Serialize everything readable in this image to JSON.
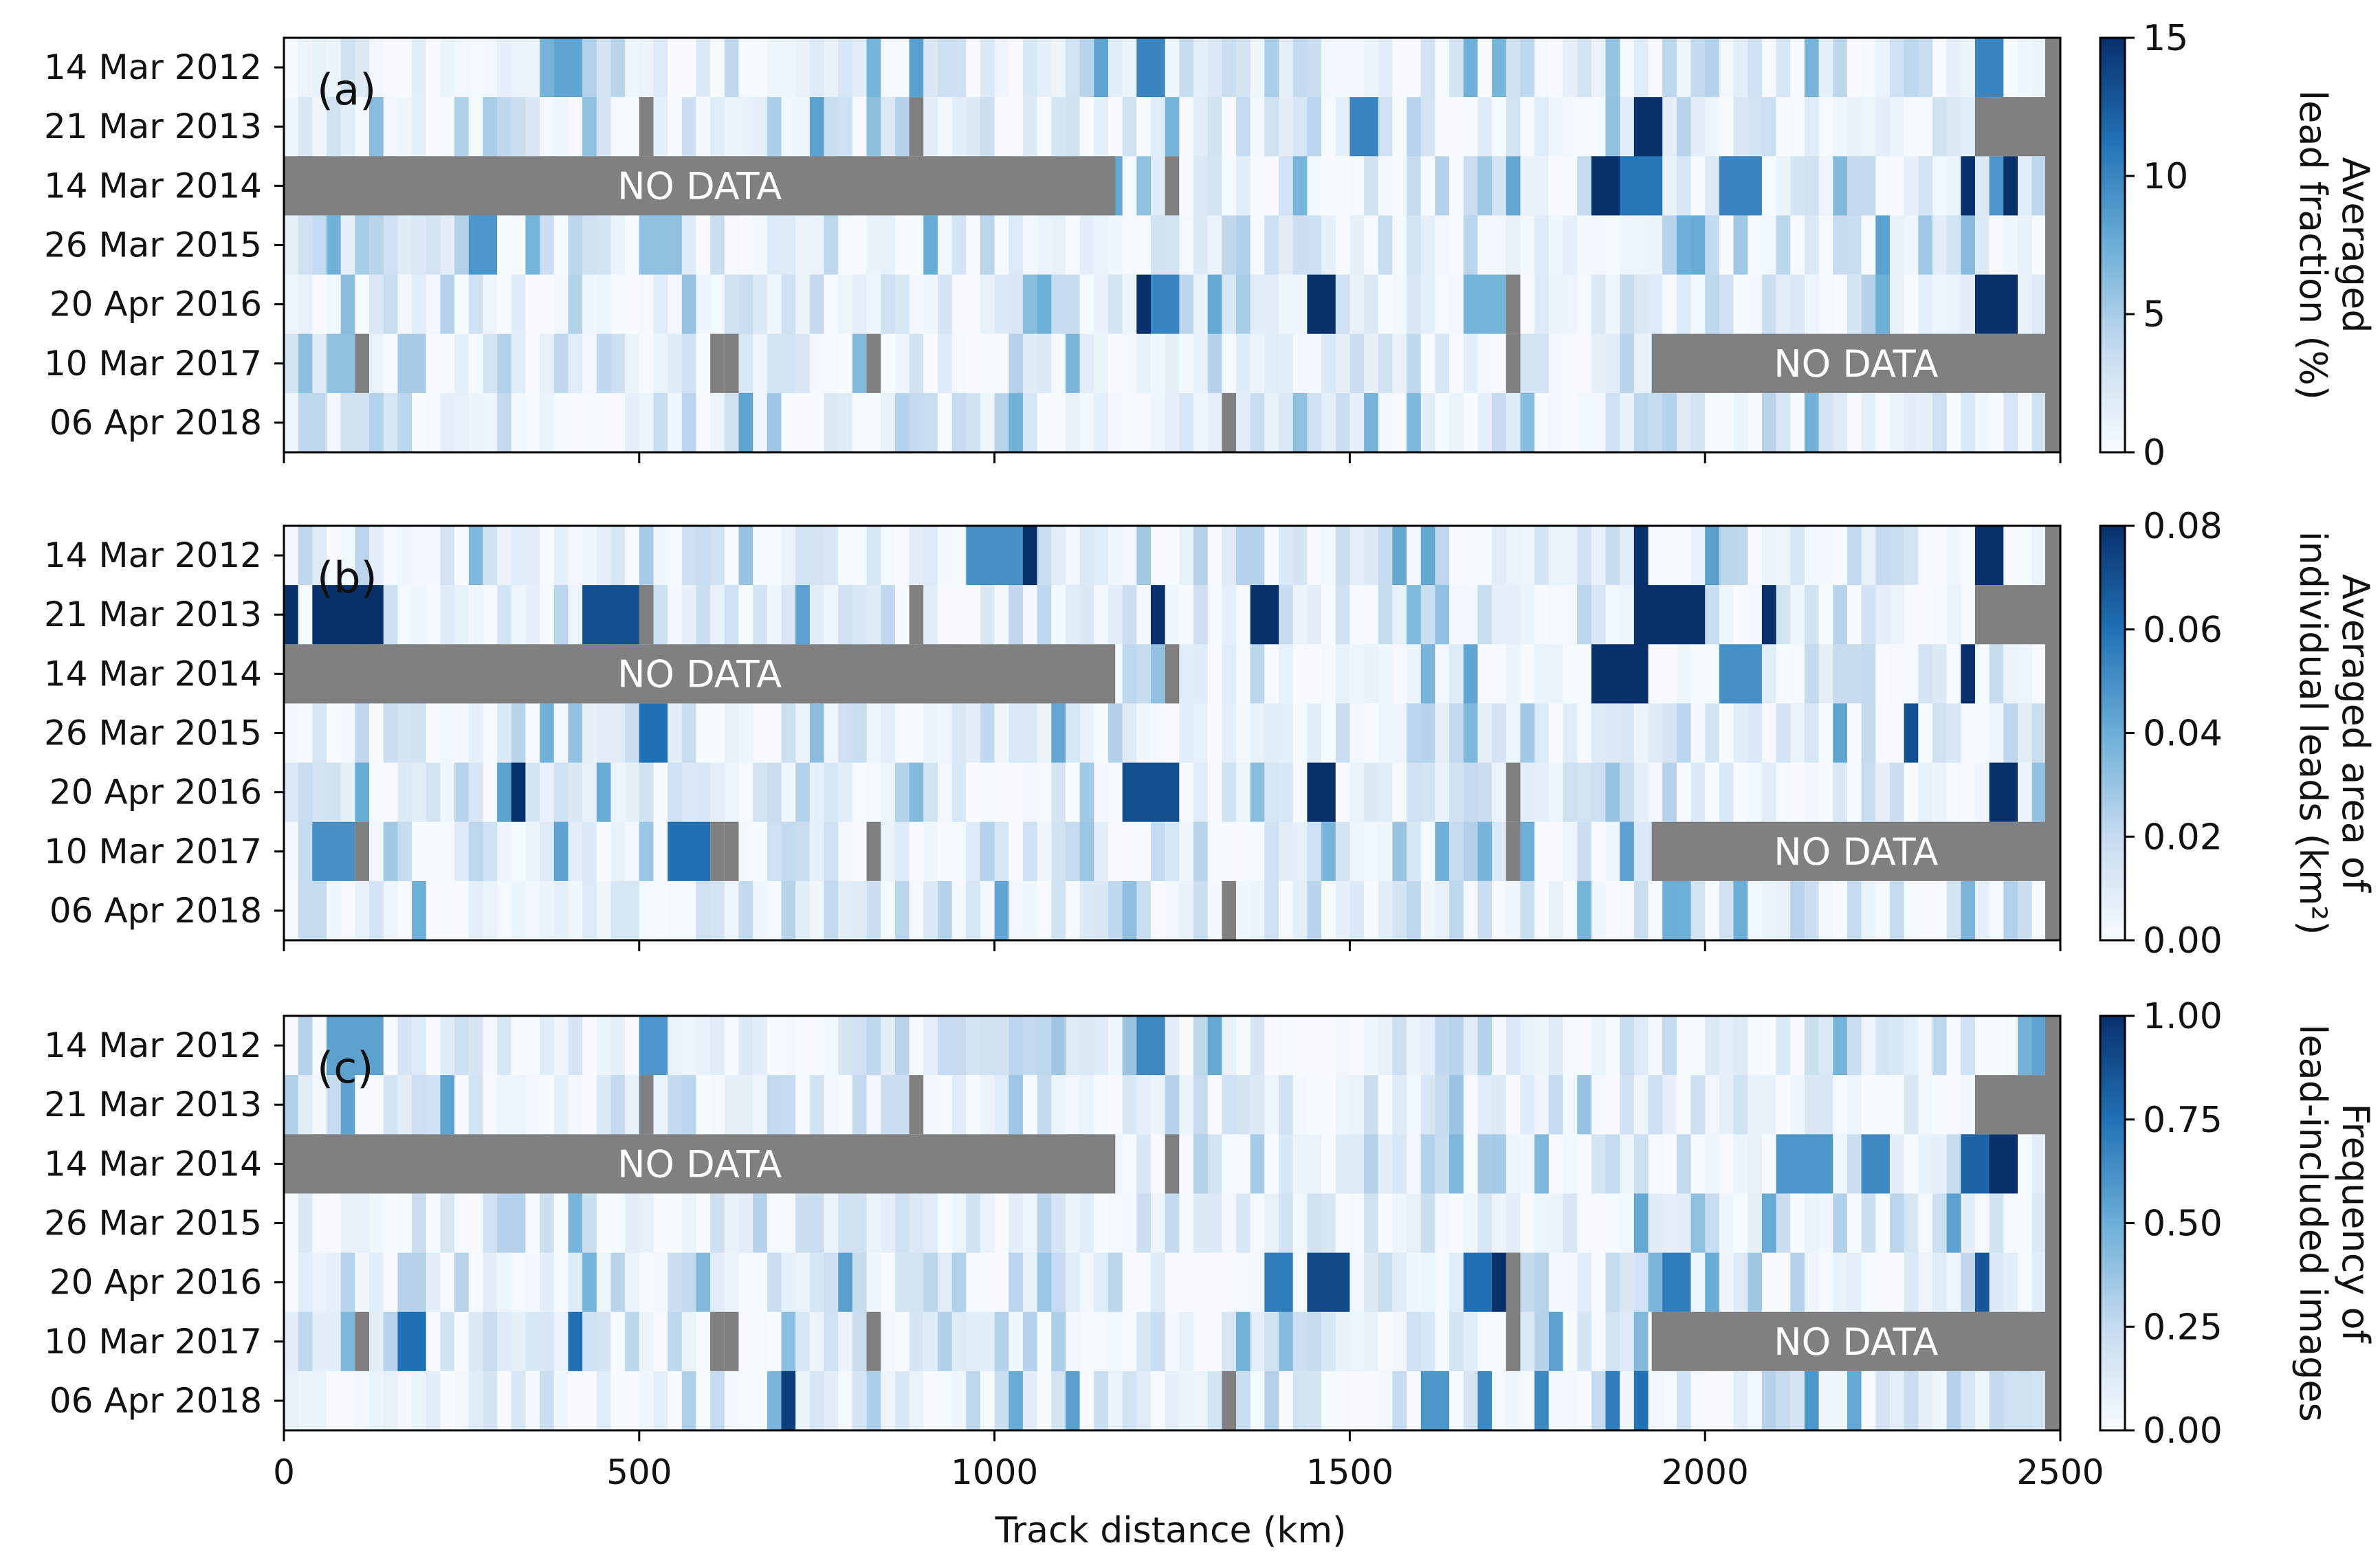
{
  "chart_data": {
    "type": "heatmap",
    "rows": [
      "14 Mar 2012",
      "21 Mar 2013",
      "14 Mar 2014",
      "26 Mar 2015",
      "20 Apr 2016",
      "10 Mar 2017",
      "06 Apr 2018"
    ],
    "bin_width_km": 20,
    "xlim": [
      0,
      2500
    ],
    "xticks": [
      "0",
      "500",
      "1000",
      "1500",
      "2000",
      "2500"
    ],
    "xlabel": "Track distance (km)",
    "no_data_label": "NO DATA",
    "colormap": [
      "#f7fbff",
      "#c6dbef",
      "#6baed6",
      "#2171b5",
      "#08306b"
    ],
    "nodata_color": "#808080",
    "panels": [
      {
        "label": "(a)",
        "colorbar_label": [
          "Averaged",
          "lead fraction (%)"
        ],
        "vmin": 0,
        "vmax": 15,
        "cbar_ticks": [
          "0",
          "5",
          "10",
          "15"
        ],
        "missing": [
          {
            "row": 1,
            "from_km": 2380,
            "to_km": 2500
          },
          {
            "row": 2,
            "from_km": 0,
            "to_km": 1170,
            "labeled": true
          },
          {
            "row": 5,
            "from_km": 1925,
            "to_km": 2500,
            "labeled": true
          }
        ],
        "missing_bins": [
          [
            1,
            510
          ],
          [
            1,
            880
          ],
          [
            2,
            1250
          ],
          [
            4,
            1720
          ],
          [
            5,
            100
          ],
          [
            5,
            600
          ],
          [
            5,
            620
          ],
          [
            5,
            830
          ],
          [
            5,
            1720
          ],
          [
            6,
            1330
          ]
        ],
        "hotspots": [
          {
            "row": 0,
            "from_km": 390,
            "to_km": 410,
            "value": 8
          },
          {
            "row": 0,
            "from_km": 1200,
            "to_km": 1230,
            "value": 10
          },
          {
            "row": 0,
            "from_km": 2390,
            "to_km": 2420,
            "value": 10
          },
          {
            "row": 0,
            "from_km": 2140,
            "to_km": 2160,
            "value": 7
          },
          {
            "row": 1,
            "from_km": 1510,
            "to_km": 1530,
            "value": 10
          },
          {
            "row": 1,
            "from_km": 1900,
            "to_km": 1940,
            "value": 15
          },
          {
            "row": 1,
            "from_km": 1240,
            "to_km": 1260,
            "value": 7
          },
          {
            "row": 1,
            "from_km": 420,
            "to_km": 440,
            "value": 6
          },
          {
            "row": 2,
            "from_km": 1850,
            "to_km": 1890,
            "value": 15
          },
          {
            "row": 2,
            "from_km": 1890,
            "to_km": 1940,
            "value": 11
          },
          {
            "row": 2,
            "from_km": 2030,
            "to_km": 2070,
            "value": 10
          },
          {
            "row": 2,
            "from_km": 2360,
            "to_km": 2380,
            "value": 15
          },
          {
            "row": 2,
            "from_km": 2420,
            "to_km": 2440,
            "value": 15
          },
          {
            "row": 2,
            "from_km": 2400,
            "to_km": 2420,
            "value": 9
          },
          {
            "row": 3,
            "from_km": 270,
            "to_km": 290,
            "value": 9
          },
          {
            "row": 3,
            "from_km": 500,
            "to_km": 550,
            "value": 6
          },
          {
            "row": 4,
            "from_km": 1200,
            "to_km": 1230,
            "value": 15
          },
          {
            "row": 4,
            "from_km": 1230,
            "to_km": 1250,
            "value": 10
          },
          {
            "row": 4,
            "from_km": 1450,
            "to_km": 1470,
            "value": 15
          },
          {
            "row": 4,
            "from_km": 1660,
            "to_km": 1710,
            "value": 7
          },
          {
            "row": 4,
            "from_km": 2380,
            "to_km": 2430,
            "value": 15
          },
          {
            "row": 5,
            "from_km": 70,
            "to_km": 100,
            "value": 6
          },
          {
            "row": 5,
            "from_km": 170,
            "to_km": 190,
            "value": 5
          }
        ]
      },
      {
        "label": "(b)",
        "colorbar_label": [
          "Averaged area of",
          "individual leads (km²)"
        ],
        "vmin": 0,
        "vmax": 0.08,
        "cbar_ticks": [
          "0.00",
          "0.02",
          "0.04",
          "0.06",
          "0.08"
        ],
        "missing": [
          {
            "row": 1,
            "from_km": 2380,
            "to_km": 2500
          },
          {
            "row": 2,
            "from_km": 0,
            "to_km": 1170,
            "labeled": true
          },
          {
            "row": 5,
            "from_km": 1925,
            "to_km": 2500,
            "labeled": true
          }
        ],
        "missing_bins": [
          [
            1,
            510
          ],
          [
            1,
            880
          ],
          [
            2,
            1250
          ],
          [
            4,
            1720
          ],
          [
            5,
            100
          ],
          [
            5,
            600
          ],
          [
            5,
            620
          ],
          [
            5,
            830
          ],
          [
            5,
            1720
          ],
          [
            6,
            1330
          ]
        ],
        "hotspots": [
          {
            "row": 0,
            "from_km": 1030,
            "to_km": 1060,
            "value": 0.08
          },
          {
            "row": 0,
            "from_km": 1900,
            "to_km": 1920,
            "value": 0.08
          },
          {
            "row": 0,
            "from_km": 2390,
            "to_km": 2420,
            "value": 0.08
          },
          {
            "row": 0,
            "from_km": 970,
            "to_km": 1030,
            "value": 0.05
          },
          {
            "row": 1,
            "from_km": 0,
            "to_km": 20,
            "value": 0.08
          },
          {
            "row": 1,
            "from_km": 40,
            "to_km": 140,
            "value": 0.08
          },
          {
            "row": 1,
            "from_km": 430,
            "to_km": 490,
            "value": 0.07
          },
          {
            "row": 1,
            "from_km": 1220,
            "to_km": 1240,
            "value": 0.08
          },
          {
            "row": 1,
            "from_km": 1370,
            "to_km": 1390,
            "value": 0.08
          },
          {
            "row": 1,
            "from_km": 1900,
            "to_km": 2000,
            "value": 0.08
          },
          {
            "row": 1,
            "from_km": 2080,
            "to_km": 2100,
            "value": 0.08
          },
          {
            "row": 2,
            "from_km": 1850,
            "to_km": 1920,
            "value": 0.08
          },
          {
            "row": 2,
            "from_km": 2360,
            "to_km": 2380,
            "value": 0.08
          },
          {
            "row": 2,
            "from_km": 2030,
            "to_km": 2070,
            "value": 0.05
          },
          {
            "row": 3,
            "from_km": 500,
            "to_km": 540,
            "value": 0.06
          },
          {
            "row": 3,
            "from_km": 2280,
            "to_km": 2300,
            "value": 0.07
          },
          {
            "row": 4,
            "from_km": 320,
            "to_km": 340,
            "value": 0.08
          },
          {
            "row": 4,
            "from_km": 1190,
            "to_km": 1250,
            "value": 0.07
          },
          {
            "row": 4,
            "from_km": 1450,
            "to_km": 1470,
            "value": 0.08
          },
          {
            "row": 4,
            "from_km": 2400,
            "to_km": 2430,
            "value": 0.08
          },
          {
            "row": 5,
            "from_km": 550,
            "to_km": 600,
            "value": 0.06
          },
          {
            "row": 5,
            "from_km": 40,
            "to_km": 100,
            "value": 0.05
          },
          {
            "row": 6,
            "from_km": 1950,
            "to_km": 1970,
            "value": 0.04
          }
        ]
      },
      {
        "label": "(c)",
        "colorbar_label": [
          "Frequency of",
          "lead-included images"
        ],
        "vmin": 0,
        "vmax": 1.0,
        "cbar_ticks": [
          "0.00",
          "0.25",
          "0.50",
          "0.75",
          "1.00"
        ],
        "missing": [
          {
            "row": 1,
            "from_km": 2380,
            "to_km": 2500
          },
          {
            "row": 2,
            "from_km": 0,
            "to_km": 1170,
            "labeled": true
          },
          {
            "row": 5,
            "from_km": 1925,
            "to_km": 2500,
            "labeled": true
          }
        ],
        "missing_bins": [
          [
            1,
            510
          ],
          [
            1,
            880
          ],
          [
            2,
            1250
          ],
          [
            4,
            1720
          ],
          [
            5,
            100
          ],
          [
            5,
            600
          ],
          [
            5,
            620
          ],
          [
            5,
            830
          ],
          [
            5,
            1720
          ],
          [
            6,
            1330
          ]
        ],
        "hotspots": [
          {
            "row": 0,
            "from_km": 60,
            "to_km": 140,
            "value": 0.55
          },
          {
            "row": 0,
            "from_km": 500,
            "to_km": 540,
            "value": 0.6
          },
          {
            "row": 0,
            "from_km": 1200,
            "to_km": 1230,
            "value": 0.65
          },
          {
            "row": 2,
            "from_km": 2360,
            "to_km": 2400,
            "value": 0.8
          },
          {
            "row": 2,
            "from_km": 2400,
            "to_km": 2440,
            "value": 1.0
          },
          {
            "row": 2,
            "from_km": 2100,
            "to_km": 2180,
            "value": 0.6
          },
          {
            "row": 2,
            "from_km": 2230,
            "to_km": 2260,
            "value": 0.65
          },
          {
            "row": 4,
            "from_km": 1450,
            "to_km": 1500,
            "value": 0.9
          },
          {
            "row": 4,
            "from_km": 1700,
            "to_km": 1730,
            "value": 1.0
          },
          {
            "row": 4,
            "from_km": 1660,
            "to_km": 1700,
            "value": 0.75
          },
          {
            "row": 4,
            "from_km": 1390,
            "to_km": 1410,
            "value": 0.7
          },
          {
            "row": 4,
            "from_km": 1950,
            "to_km": 1970,
            "value": 0.7
          },
          {
            "row": 4,
            "from_km": 2380,
            "to_km": 2400,
            "value": 0.85
          },
          {
            "row": 5,
            "from_km": 170,
            "to_km": 190,
            "value": 0.75
          },
          {
            "row": 5,
            "from_km": 400,
            "to_km": 420,
            "value": 0.75
          },
          {
            "row": 6,
            "from_km": 700,
            "to_km": 720,
            "value": 0.95
          },
          {
            "row": 6,
            "from_km": 1600,
            "to_km": 1640,
            "value": 0.6
          },
          {
            "row": 6,
            "from_km": 1680,
            "to_km": 1700,
            "value": 0.65
          },
          {
            "row": 6,
            "from_km": 1760,
            "to_km": 1780,
            "value": 0.65
          },
          {
            "row": 6,
            "from_km": 1860,
            "to_km": 1880,
            "value": 0.7
          },
          {
            "row": 6,
            "from_km": 1900,
            "to_km": 1920,
            "value": 0.75
          },
          {
            "row": 6,
            "from_km": 2140,
            "to_km": 2160,
            "value": 0.6
          }
        ]
      }
    ]
  }
}
